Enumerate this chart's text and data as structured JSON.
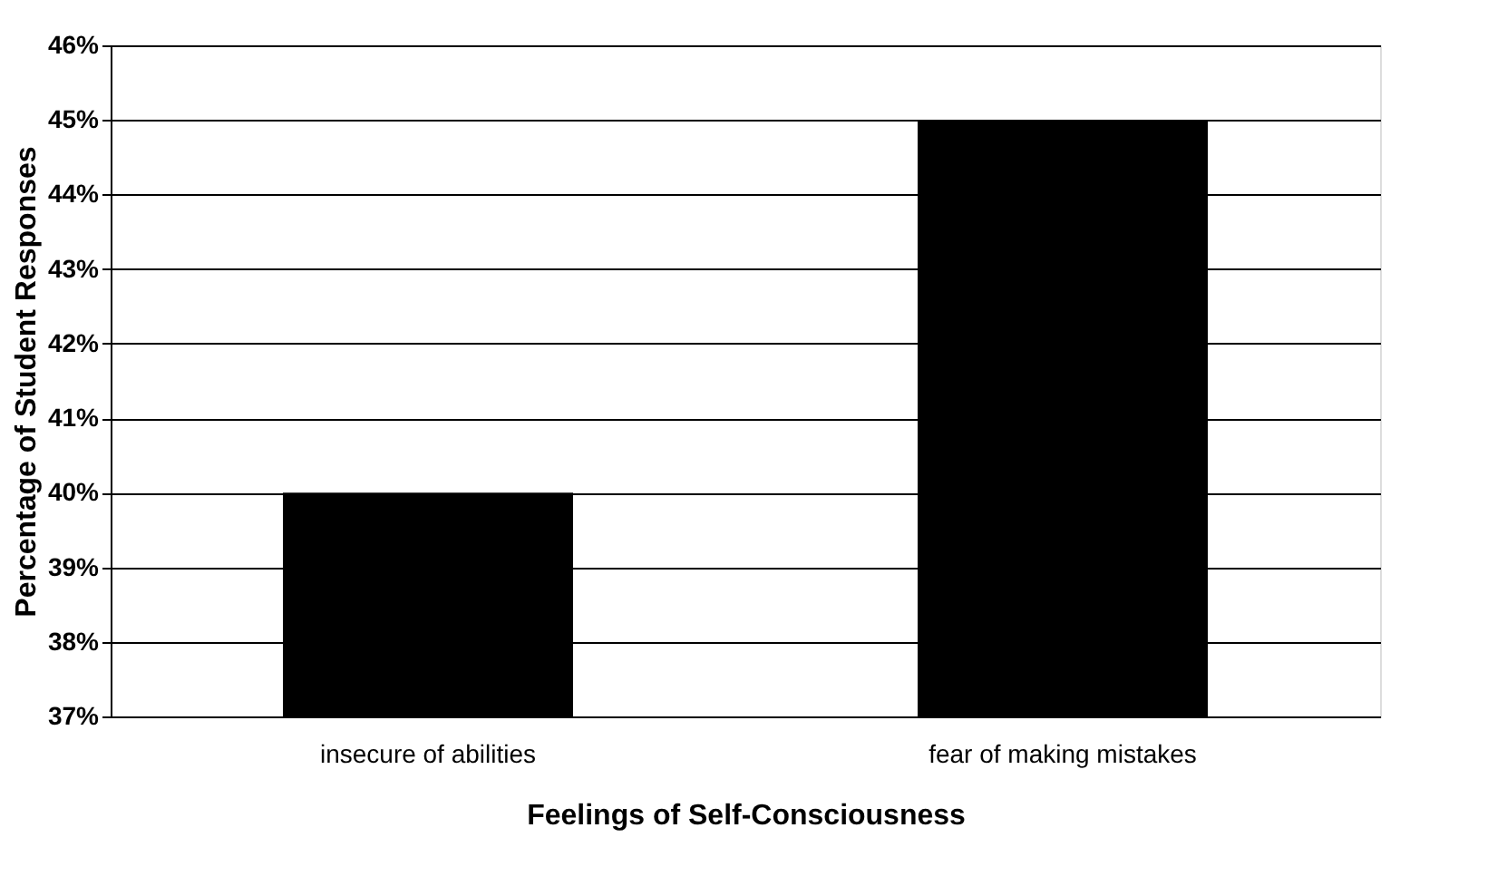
{
  "chart_data": {
    "type": "bar",
    "xlabel": "Feelings of Self-Consciousness",
    "ylabel": "Percentage of Student Responses",
    "categories": [
      "insecure of abilities",
      "fear of making mistakes"
    ],
    "values": [
      40,
      45
    ],
    "color": "#000000",
    "ylim": [
      37,
      46
    ],
    "yticks": [
      {
        "value": 37,
        "label": "37%"
      },
      {
        "value": 38,
        "label": "38%"
      },
      {
        "value": 39,
        "label": "39%"
      },
      {
        "value": 40,
        "label": "40%"
      },
      {
        "value": 41,
        "label": "41%"
      },
      {
        "value": 42,
        "label": "42%"
      },
      {
        "value": 43,
        "label": "43%"
      },
      {
        "value": 44,
        "label": "44%"
      },
      {
        "value": 45,
        "label": "45%"
      },
      {
        "value": 46,
        "label": "46%"
      }
    ],
    "grid": "y"
  }
}
